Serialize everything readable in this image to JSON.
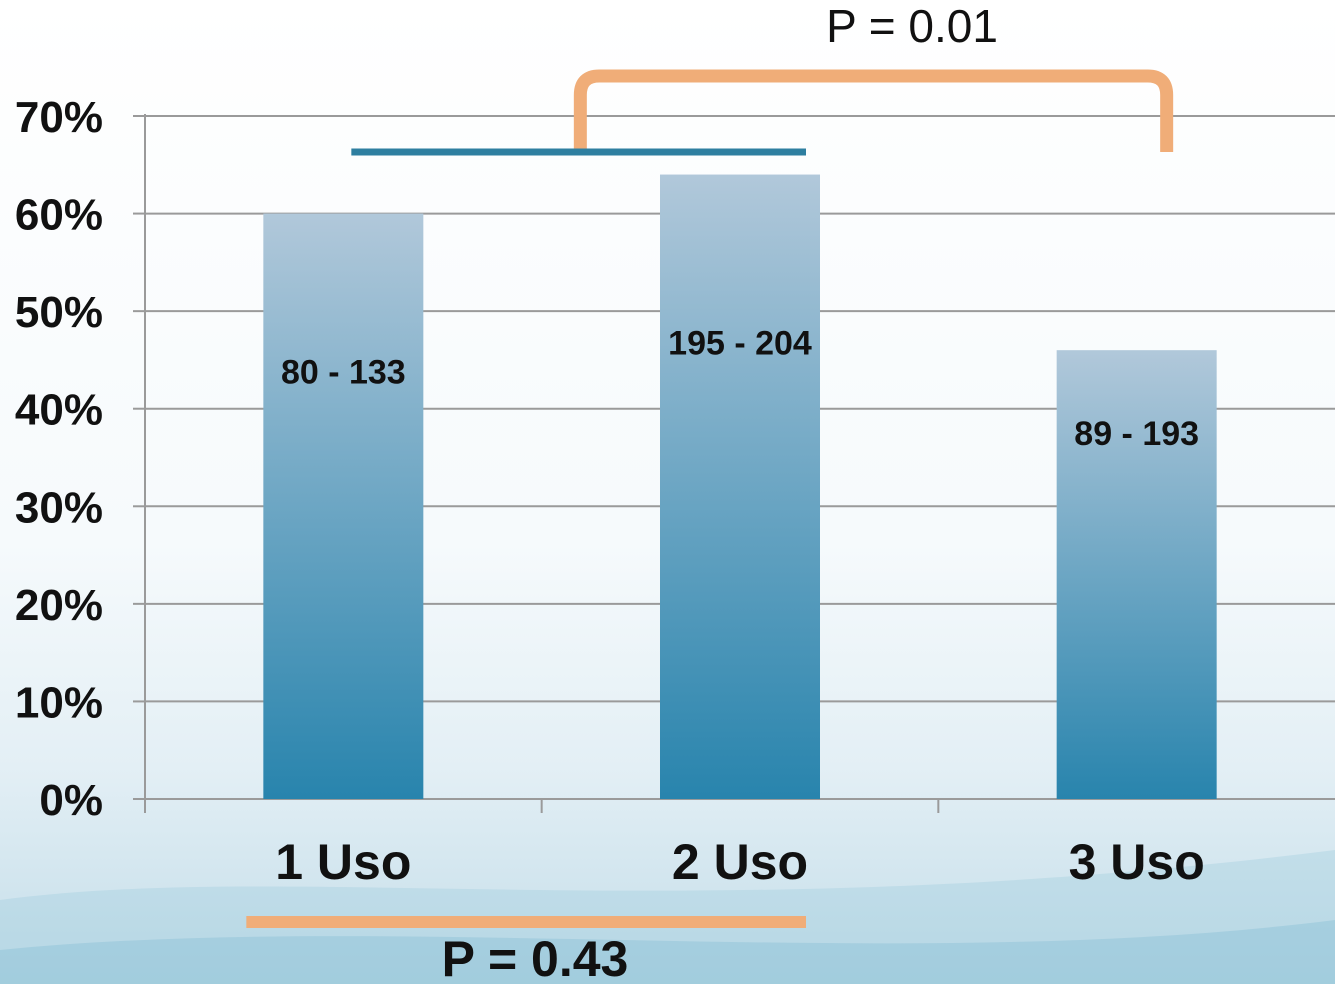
{
  "chart_data": {
    "type": "bar",
    "categories": [
      "1 Uso",
      "2 Uso",
      "3 Uso"
    ],
    "series": [
      {
        "values": [
          60,
          64,
          46
        ],
        "labels": [
          "80 - 133",
          "195 - 204",
          "89 - 193"
        ]
      }
    ],
    "yticks": [
      "0%",
      "10%",
      "20%",
      "30%",
      "40%",
      "50%",
      "60%",
      "70%"
    ],
    "ylim": [
      0,
      70
    ],
    "grid": true,
    "annotations": {
      "top_comparison": {
        "label": "P = 0.01",
        "from": "1 Uso",
        "to": "3 Uso"
      },
      "bottom_comparison": {
        "label": "P = 0.43",
        "from": "1 Uso",
        "to": "2 Uso"
      }
    }
  },
  "colors": {
    "bar_top": "#b1c8da",
    "bar_bottom": "#2884ad",
    "grid": "#9a9a9a",
    "bracket_orange": "#f0ad78",
    "bracket_blue": "#2e7fa0"
  }
}
